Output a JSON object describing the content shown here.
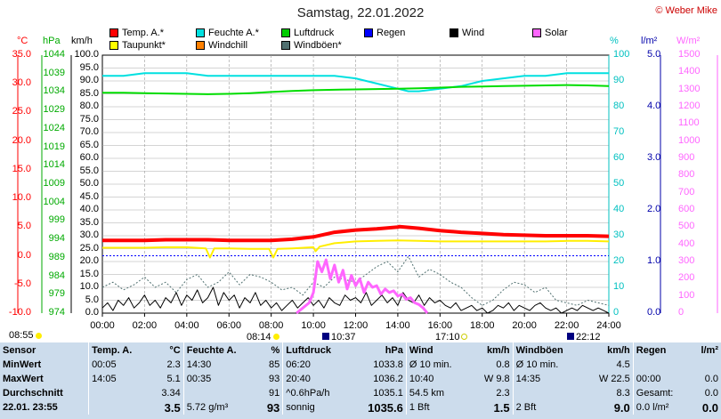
{
  "title": "Samstag, 22.01.2022",
  "copyright": "© Weber Mike",
  "legend": [
    {
      "label": "Temp. A.*",
      "color": "#ff0000",
      "col": 0,
      "row": 0
    },
    {
      "label": "Taupunkt*",
      "color": "#ffff00",
      "col": 0,
      "row": 1
    },
    {
      "label": "Feuchte A.*",
      "color": "#00e0e0",
      "col": 1,
      "row": 0
    },
    {
      "label": "Windchill",
      "color": "#ff8000",
      "col": 1,
      "row": 1
    },
    {
      "label": "Luftdruck",
      "color": "#00cc00",
      "col": 2,
      "row": 0
    },
    {
      "label": "Windböen*",
      "color": "#507070",
      "col": 2,
      "row": 1
    },
    {
      "label": "Regen",
      "color": "#0000ff",
      "col": 3,
      "row": 0
    },
    {
      "label": "Wind",
      "color": "#000000",
      "col": 4,
      "row": 0
    },
    {
      "label": "Solar",
      "color": "#ff66ff",
      "col": 5,
      "row": 0
    }
  ],
  "units": {
    "temp": "°C",
    "pressure": "hPa",
    "wind": "km/h",
    "humidity": "%",
    "rain": "l/m²",
    "solar": "W/m²"
  },
  "events": {
    "sunrise_label": "08:14",
    "sunset_label": "17:10",
    "moonrise_label": "10:37",
    "moonset_label": "22:12",
    "left_time": "08:55"
  },
  "chart_data": {
    "type": "line",
    "title": "Samstag, 22.01.2022",
    "x_ticks": [
      "00:00",
      "02:00",
      "04:00",
      "06:00",
      "08:00",
      "10:00",
      "12:00",
      "14:00",
      "16:00",
      "18:00",
      "20:00",
      "22:00",
      "24:00"
    ],
    "axes": {
      "temp": {
        "label": "°C",
        "range": [
          -10,
          35
        ],
        "ticks": [
          "35.0",
          "30.0",
          "25.0",
          "20.0",
          "15.0",
          "10.0",
          "5.0",
          "0.0",
          "-5.0",
          "-10.0"
        ],
        "color": "#ff0000"
      },
      "pressure": {
        "label": "hPa",
        "range": [
          974,
          1044
        ],
        "ticks": [
          "1044",
          "1039",
          "1034",
          "1029",
          "1024",
          "1019",
          "1014",
          "1009",
          "1004",
          "999",
          "994",
          "989",
          "984",
          "979",
          "974"
        ],
        "color": "#00aa00"
      },
      "wind": {
        "label": "km/h",
        "range": [
          0,
          100
        ],
        "ticks": [
          "100.0",
          "95.0",
          "90.0",
          "85.0",
          "80.0",
          "75.0",
          "70.0",
          "65.0",
          "60.0",
          "55.0",
          "50.0",
          "45.0",
          "40.0",
          "35.0",
          "30.0",
          "25.0",
          "20.0",
          "15.0",
          "10.0",
          "5.0",
          "0.0"
        ],
        "color": "#000000"
      },
      "humidity": {
        "label": "%",
        "range": [
          0,
          100
        ],
        "ticks": [
          "100",
          "90",
          "80",
          "70",
          "60",
          "50",
          "40",
          "30",
          "20",
          "10",
          "0"
        ],
        "color": "#00c0c0"
      },
      "rain": {
        "label": "l/m²",
        "range": [
          0,
          5
        ],
        "ticks": [
          "5.0",
          "4.0",
          "3.0",
          "2.0",
          "1.0",
          "0.0"
        ],
        "color": "#0000aa"
      },
      "solar": {
        "label": "W/m²",
        "range": [
          0,
          1500
        ],
        "ticks": [
          "1500",
          "1400",
          "1300",
          "1200",
          "1100",
          "1000",
          "900",
          "800",
          "700",
          "600",
          "500",
          "400",
          "300",
          "200",
          "100",
          "0"
        ],
        "color": "#ff66ff"
      }
    },
    "series": [
      {
        "name": "Feuchte A.*",
        "axis": "humidity",
        "color": "#00e0e0",
        "width": 2,
        "x": [
          0,
          1,
          2,
          3,
          4,
          5,
          6,
          7,
          8,
          9,
          10,
          11,
          12,
          13,
          13.5,
          14,
          14.5,
          15,
          16,
          17,
          18,
          19,
          20,
          21,
          22,
          23,
          24
        ],
        "y": [
          92,
          92,
          93,
          93,
          93,
          92,
          92,
          92,
          92,
          92,
          92,
          92,
          91,
          89,
          88,
          87,
          86,
          86,
          87,
          88,
          90,
          91,
          92,
          92,
          93,
          93,
          93
        ]
      },
      {
        "name": "Luftdruck",
        "axis": "pressure",
        "color": "#00dd00",
        "width": 2,
        "x": [
          0,
          1,
          2,
          3,
          4,
          5,
          6,
          7,
          8,
          9,
          10,
          11,
          12,
          13,
          14,
          15,
          16,
          17,
          18,
          19,
          20,
          21,
          22,
          23,
          24
        ],
        "y": [
          1033.8,
          1033.8,
          1033.7,
          1033.6,
          1033.5,
          1033.4,
          1033.5,
          1033.7,
          1034,
          1034.3,
          1034.5,
          1034.6,
          1034.7,
          1034.8,
          1034.9,
          1035,
          1035.2,
          1035.4,
          1035.5,
          1035.6,
          1035.7,
          1035.8,
          1035.9,
          1035.8,
          1035.6
        ]
      },
      {
        "name": "Temp. A.*",
        "axis": "temp",
        "color": "#ff0000",
        "width": 4,
        "x": [
          0,
          1,
          2,
          3,
          4,
          5,
          6,
          7,
          8,
          9,
          10,
          11,
          12,
          13,
          14,
          14.08,
          15,
          16,
          17,
          18,
          19,
          20,
          21,
          22,
          23,
          24
        ],
        "y": [
          2.7,
          2.7,
          2.7,
          2.8,
          2.8,
          2.8,
          2.7,
          2.7,
          2.7,
          2.9,
          3.3,
          4.1,
          4.5,
          4.7,
          5.0,
          5.1,
          4.8,
          4.4,
          4.1,
          3.9,
          3.7,
          3.6,
          3.5,
          3.5,
          3.5,
          3.4
        ]
      },
      {
        "name": "Taupunkt*",
        "axis": "temp",
        "color": "#ffee00",
        "width": 2,
        "x": [
          0,
          1,
          2,
          3,
          4,
          4.9,
          5.1,
          5.3,
          6,
          7,
          7.9,
          8.1,
          8.3,
          9,
          10,
          10.1,
          10.3,
          11,
          12,
          13,
          14,
          15,
          16,
          17,
          18,
          19,
          20,
          21,
          22,
          23,
          24
        ],
        "y": [
          1.4,
          1.4,
          1.4,
          1.5,
          1.5,
          1.3,
          -0.3,
          1.3,
          1.3,
          1.2,
          1.2,
          -0.3,
          1.2,
          1.3,
          1.5,
          0.8,
          1.6,
          2.2,
          2.5,
          2.6,
          2.7,
          2.6,
          2.5,
          2.5,
          2.5,
          2.5,
          2.5,
          2.5,
          2.6,
          2.6,
          2.5
        ]
      },
      {
        "name": "Windböen*",
        "axis": "wind",
        "color": "#507070",
        "width": 1,
        "dash": "2,2",
        "x": [
          0,
          0.5,
          1,
          1.5,
          2,
          2.5,
          3,
          3.5,
          4,
          4.5,
          5,
          5.5,
          6,
          6.5,
          7,
          7.5,
          8,
          8.5,
          9,
          9.5,
          10,
          10.5,
          11,
          11.5,
          12,
          12.5,
          13,
          13.5,
          14,
          14.5,
          15,
          15.5,
          16,
          16.5,
          17,
          17.5,
          18,
          18.5,
          19,
          19.5,
          20,
          20.5,
          21,
          21.5,
          22,
          22.5,
          23,
          23.5,
          24
        ],
        "y": [
          10,
          12,
          9,
          11,
          14,
          10,
          12,
          8,
          13,
          15,
          10,
          12,
          16,
          11,
          15,
          14,
          12,
          9,
          10,
          7,
          12,
          10,
          14,
          13,
          12,
          15,
          18,
          20,
          16,
          22,
          14,
          17,
          15,
          12,
          10,
          6,
          3,
          5,
          9,
          12,
          11,
          8,
          10,
          5,
          4,
          3,
          5,
          4,
          3
        ]
      },
      {
        "name": "Wind",
        "axis": "wind",
        "color": "#000000",
        "width": 1,
        "x": [
          0,
          0.25,
          0.5,
          0.75,
          1,
          1.25,
          1.5,
          1.75,
          2,
          2.25,
          2.5,
          2.75,
          3,
          3.25,
          3.5,
          3.75,
          4,
          4.25,
          4.5,
          4.75,
          5,
          5.25,
          5.5,
          5.75,
          6,
          6.25,
          6.5,
          6.75,
          7,
          7.25,
          7.5,
          7.75,
          8,
          8.25,
          8.5,
          8.75,
          9,
          9.25,
          9.5,
          9.75,
          10,
          10.25,
          10.5,
          10.75,
          11,
          11.25,
          11.5,
          11.75,
          12,
          12.25,
          12.5,
          12.75,
          13,
          13.25,
          13.5,
          13.75,
          14,
          14.25,
          14.5,
          14.75,
          15,
          15.25,
          15.5,
          15.75,
          16,
          16.25,
          16.5,
          16.75,
          17,
          17.25,
          17.5,
          17.75,
          18,
          18.25,
          18.5,
          18.75,
          19,
          19.25,
          19.5,
          19.75,
          20,
          20.25,
          20.5,
          20.75,
          21,
          21.25,
          21.5,
          21.75,
          22,
          22.25,
          22.5,
          22.75,
          23,
          23.25,
          23.5,
          23.75,
          24
        ],
        "y": [
          2,
          4,
          1,
          5,
          3,
          6,
          2,
          4,
          7,
          3,
          5,
          2,
          6,
          4,
          8,
          3,
          7,
          5,
          9,
          4,
          6,
          10,
          3,
          8,
          5,
          7,
          2,
          6,
          4,
          8,
          3,
          5,
          2,
          4,
          1,
          3,
          5,
          2,
          4,
          6,
          3,
          5,
          2,
          6,
          4,
          3,
          7,
          5,
          6,
          4,
          8,
          3,
          5,
          7,
          4,
          6,
          3,
          8,
          5,
          4,
          7,
          3,
          6,
          4,
          5,
          3,
          2,
          4,
          1,
          2,
          3,
          1,
          2,
          0,
          1,
          3,
          2,
          4,
          1,
          3,
          2,
          1,
          3,
          4,
          2,
          1,
          2,
          0,
          1,
          2,
          1,
          3,
          2,
          1,
          2,
          1,
          0
        ],
        "note_max": 9.8
      },
      {
        "name": "Solar",
        "axis": "solar",
        "color": "#ff66ff",
        "width": 3,
        "x": [
          9.2,
          9.5,
          9.8,
          10,
          10.2,
          10.4,
          10.6,
          10.8,
          11,
          11.2,
          11.4,
          11.6,
          11.8,
          12,
          12.2,
          12.4,
          12.6,
          12.8,
          13,
          13.2,
          13.4,
          13.6,
          13.8,
          14,
          14.2,
          14.4,
          14.6,
          14.8,
          15,
          15.2,
          15.4
        ],
        "y": [
          0,
          30,
          60,
          120,
          300,
          240,
          310,
          200,
          280,
          180,
          250,
          140,
          220,
          160,
          200,
          120,
          180,
          150,
          160,
          110,
          140,
          120,
          130,
          100,
          110,
          80,
          90,
          60,
          50,
          30,
          0
        ]
      }
    ],
    "reference_lines": [
      {
        "name": "0 °C",
        "axis": "temp",
        "value": 0,
        "color": "#0000ff",
        "dash": "2,2"
      }
    ]
  },
  "stats": {
    "columns": [
      {
        "header": "Sensor",
        "unit": ""
      },
      {
        "header": "Temp. A.",
        "unit": "°C"
      },
      {
        "header": "Feuchte A.",
        "unit": "%"
      },
      {
        "header": "Luftdruck",
        "unit": "hPa"
      },
      {
        "header": "Wind",
        "unit": "km/h"
      },
      {
        "header": "Windböen",
        "unit": "km/h"
      },
      {
        "header": "Regen",
        "unit": "l/m²"
      }
    ],
    "rows": [
      {
        "label": "MinWert",
        "cells": [
          [
            "00:05",
            "2.3"
          ],
          [
            "14:30",
            "85"
          ],
          [
            "06:20",
            "1033.8"
          ],
          [
            "Ø 10 min.",
            "0.8"
          ],
          [
            "Ø 10 min.",
            "4.5"
          ],
          [
            "",
            ""
          ]
        ]
      },
      {
        "label": "MaxWert",
        "cells": [
          [
            "14:05",
            "5.1"
          ],
          [
            "00:35",
            "93"
          ],
          [
            "20:40",
            "1036.2"
          ],
          [
            "10:40",
            "W 9.8"
          ],
          [
            "14:35",
            "W 22.5"
          ],
          [
            "00:00",
            "0.0"
          ]
        ]
      },
      {
        "label": "Durchschnitt",
        "cells": [
          [
            "",
            "3.34"
          ],
          [
            "",
            "91"
          ],
          [
            "^0.6hPa/h",
            "1035.1"
          ],
          [
            "54.5 km",
            "2.3"
          ],
          [
            "",
            "8.3"
          ],
          [
            "Gesamt:",
            "0.0"
          ]
        ]
      },
      {
        "label": "22.01. 23:55",
        "cells": [
          [
            "",
            "3.5"
          ],
          [
            "5.72 g/m³",
            "93"
          ],
          [
            "sonnig",
            "1035.6"
          ],
          [
            "1 Bft",
            "1.5"
          ],
          [
            "2 Bft",
            "9.0"
          ],
          [
            "0.0 l/m²",
            "0.0"
          ]
        ]
      }
    ]
  }
}
